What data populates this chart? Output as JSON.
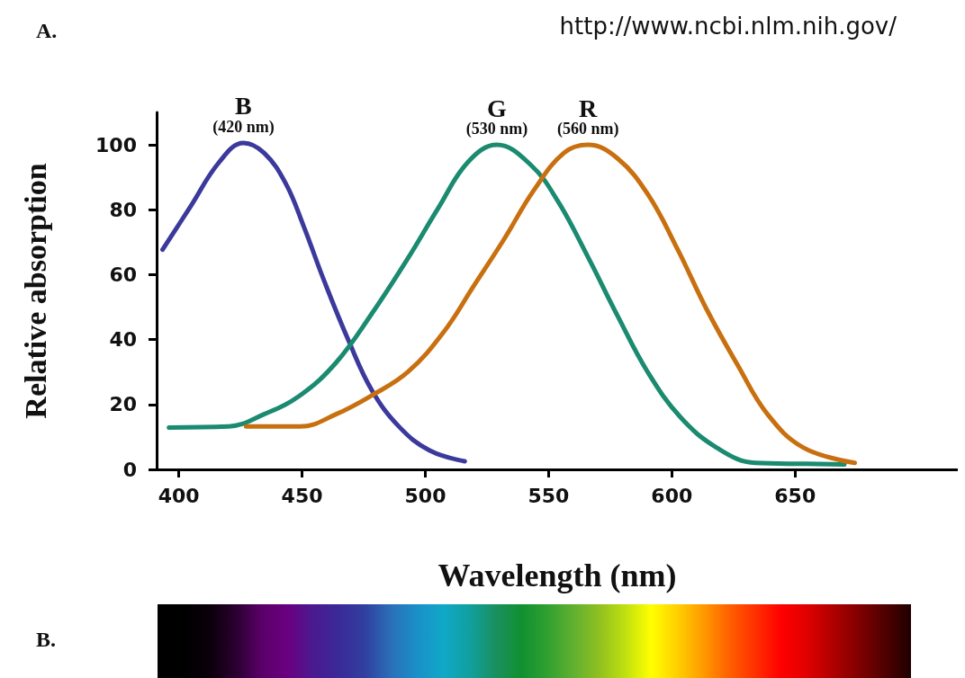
{
  "chart_data": {
    "type": "line",
    "xlabel": "Wavelength (nm)",
    "ylabel": "Relative absorption",
    "xlim": [
      391,
      716
    ],
    "xticks": [
      400,
      450,
      500,
      550,
      600,
      650
    ],
    "ylim": [
      0,
      110
    ],
    "yticks": [
      0,
      20,
      40,
      60,
      80,
      100
    ],
    "grid": false,
    "legend": false,
    "marker": "none",
    "line_style": "solid",
    "series": [
      {
        "name": "B",
        "color": "#3b3a9c",
        "x": [
          393.4,
          404.4,
          416.4,
          426.2,
          434.6,
          443.3,
          450.6,
          459,
          468.9,
          478.3,
          489.3,
          501.6,
          516
        ],
        "values": [
          67.7,
          80.6,
          94.7,
          100.6,
          97.5,
          88.2,
          75,
          58,
          39.6,
          24.4,
          13.2,
          5.9,
          2.5
        ]
      },
      {
        "name": "G",
        "color": "#1a8a70",
        "x": [
          396,
          420,
          434.6,
          449.2,
          463.8,
          478.3,
          492.9,
          505.3,
          517.3,
          529,
          542.8,
          553.8,
          565.8,
          578.2,
          590.2,
          603.6,
          618.2,
          633.9,
          654.6,
          670
        ],
        "values": [
          12.9,
          13.2,
          17,
          22.8,
          32.9,
          48,
          65,
          80.6,
          94.7,
          100,
          93.8,
          82.6,
          65.7,
          47,
          30,
          16,
          6.7,
          2,
          1.7,
          1.5
        ]
      },
      {
        "name": "R",
        "color": "#c8700f",
        "x": [
          427.3,
          449.2,
          463.8,
          478.3,
          492.9,
          507.5,
          519.6,
          532,
          544,
          556.2,
          566,
          578,
          590.4,
          602.4,
          614.4,
          626.8,
          638.8,
          653.4,
          674.2
        ],
        "values": [
          13.2,
          13.2,
          17,
          22.8,
          30,
          42.4,
          56.5,
          71,
          86,
          97.5,
          100,
          95.8,
          84.6,
          67.7,
          48.9,
          32,
          17,
          6.7,
          2
        ]
      }
    ],
    "annotations": [
      "A.",
      "http://www.ncbi.nlm.nih.gov/",
      "B.",
      "(420 nm)",
      "(530 nm)",
      "(560 nm)"
    ]
  }
}
